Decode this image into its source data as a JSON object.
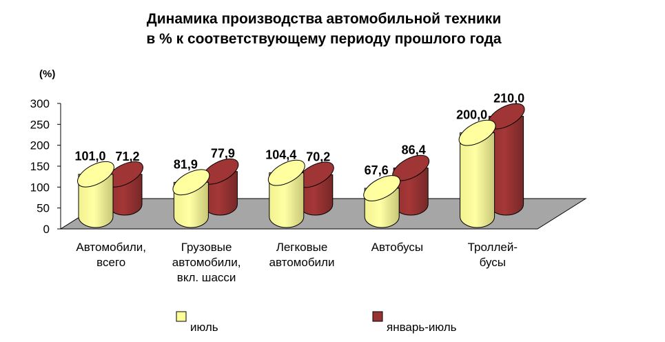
{
  "chart_data": {
    "type": "bar",
    "title_line1": "Динамика производства автомобильной техники",
    "title_line2": "в %  к соответствующему периоду прошлого года",
    "ylabel": "(%)",
    "ylim": [
      0,
      300
    ],
    "yticks": [
      0,
      50,
      100,
      150,
      200,
      250,
      300
    ],
    "grid": false,
    "legend_position": "bottom",
    "categories": [
      [
        "Автомобили,",
        "всего"
      ],
      [
        "Грузовые",
        "автомобили,",
        "вкл. шасси"
      ],
      [
        "Легковые",
        "автомобили"
      ],
      [
        "Автобусы"
      ],
      [
        "Троллей-",
        "бусы"
      ]
    ],
    "series": [
      {
        "name": "июль",
        "color": "#ffff99",
        "edge": "#000000",
        "values": [
          101.0,
          81.9,
          104.4,
          67.6,
          200.0
        ],
        "labels": [
          "101,0",
          "81,9",
          "104,4",
          "67,6",
          "200,0"
        ]
      },
      {
        "name": "январь-июль",
        "color": "#993333",
        "edge": "#000000",
        "values": [
          71.2,
          77.9,
          70.2,
          86.4,
          210.0
        ],
        "labels": [
          "71,2",
          "77,9",
          "70,2",
          "86,4",
          "210,0"
        ]
      }
    ],
    "floor_color": "#a6a6a6"
  }
}
